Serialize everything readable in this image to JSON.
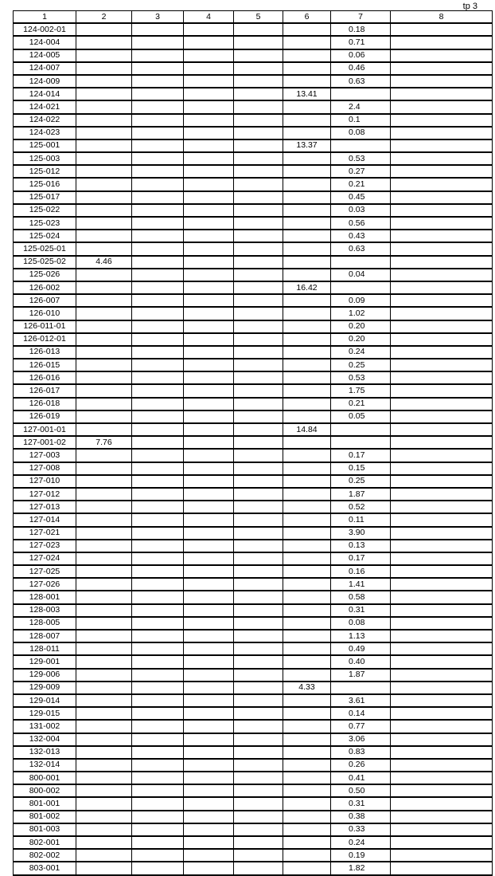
{
  "page_label": "tp 3",
  "columns": [
    "1",
    "2",
    "3",
    "4",
    "5",
    "6",
    "7",
    "8"
  ],
  "rows": [
    {
      "id": "124-002-01",
      "c2": "",
      "c6": "",
      "c7": "0.18"
    },
    {
      "id": "124-004",
      "c2": "",
      "c6": "",
      "c7": "0.71"
    },
    {
      "id": "124-005",
      "c2": "",
      "c6": "",
      "c7": "0.06"
    },
    {
      "id": "124-007",
      "c2": "",
      "c6": "",
      "c7": "0.46"
    },
    {
      "id": "124-009",
      "c2": "",
      "c6": "",
      "c7": "0.63"
    },
    {
      "id": "124-014",
      "c2": "",
      "c6": "13.41",
      "c7": ""
    },
    {
      "id": "124-021",
      "c2": "",
      "c6": "",
      "c7": "2.4"
    },
    {
      "id": "124-022",
      "c2": "",
      "c6": "",
      "c7": "0.1"
    },
    {
      "id": "124-023",
      "c2": "",
      "c6": "",
      "c7": "0.08"
    },
    {
      "id": "125-001",
      "c2": "",
      "c6": "13.37",
      "c7": ""
    },
    {
      "id": "125-003",
      "c2": "",
      "c6": "",
      "c7": "0.53"
    },
    {
      "id": "125-012",
      "c2": "",
      "c6": "",
      "c7": "0.27"
    },
    {
      "id": "125-016",
      "c2": "",
      "c6": "",
      "c7": "0.21"
    },
    {
      "id": "125-017",
      "c2": "",
      "c6": "",
      "c7": "0.45"
    },
    {
      "id": "125-022",
      "c2": "",
      "c6": "",
      "c7": "0.03"
    },
    {
      "id": "125-023",
      "c2": "",
      "c6": "",
      "c7": "0.56"
    },
    {
      "id": "125-024",
      "c2": "",
      "c6": "",
      "c7": "0.43"
    },
    {
      "id": "125-025-01",
      "c2": "",
      "c6": "",
      "c7": "0.63"
    },
    {
      "id": "125-025-02",
      "c2": "4.46",
      "c6": "",
      "c7": ""
    },
    {
      "id": "125-026",
      "c2": "",
      "c6": "",
      "c7": "0.04"
    },
    {
      "id": "126-002",
      "c2": "",
      "c6": "16.42",
      "c7": ""
    },
    {
      "id": "126-007",
      "c2": "",
      "c6": "",
      "c7": "0.09"
    },
    {
      "id": "126-010",
      "c2": "",
      "c6": "",
      "c7": "1.02"
    },
    {
      "id": "126-011-01",
      "c2": "",
      "c6": "",
      "c7": "0.20"
    },
    {
      "id": "126-012-01",
      "c2": "",
      "c6": "",
      "c7": "0.20"
    },
    {
      "id": "126-013",
      "c2": "",
      "c6": "",
      "c7": "0.24"
    },
    {
      "id": "126-015",
      "c2": "",
      "c6": "",
      "c7": "0.25"
    },
    {
      "id": "126-016",
      "c2": "",
      "c6": "",
      "c7": "0.53"
    },
    {
      "id": "126-017",
      "c2": "",
      "c6": "",
      "c7": "1.75"
    },
    {
      "id": "126-018",
      "c2": "",
      "c6": "",
      "c7": "0.21"
    },
    {
      "id": "126-019",
      "c2": "",
      "c6": "",
      "c7": "0.05"
    },
    {
      "id": "127-001-01",
      "c2": "",
      "c6": "14.84",
      "c7": ""
    },
    {
      "id": "127-001-02",
      "c2": "7.76",
      "c6": "",
      "c7": ""
    },
    {
      "id": "127-003",
      "c2": "",
      "c6": "",
      "c7": "0.17"
    },
    {
      "id": "127-008",
      "c2": "",
      "c6": "",
      "c7": "0.15"
    },
    {
      "id": "127-010",
      "c2": "",
      "c6": "",
      "c7": "0.25"
    },
    {
      "id": "127-012",
      "c2": "",
      "c6": "",
      "c7": "1.87"
    },
    {
      "id": "127-013",
      "c2": "",
      "c6": "",
      "c7": "0.52"
    },
    {
      "id": "127-014",
      "c2": "",
      "c6": "",
      "c7": "0.11"
    },
    {
      "id": "127-021",
      "c2": "",
      "c6": "",
      "c7": "3.90"
    },
    {
      "id": "127-023",
      "c2": "",
      "c6": "",
      "c7": "0.13"
    },
    {
      "id": "127-024",
      "c2": "",
      "c6": "",
      "c7": "0.17"
    },
    {
      "id": "127-025",
      "c2": "",
      "c6": "",
      "c7": "0.16"
    },
    {
      "id": "127-026",
      "c2": "",
      "c6": "",
      "c7": "1.41"
    },
    {
      "id": "128-001",
      "c2": "",
      "c6": "",
      "c7": "0.58"
    },
    {
      "id": "128-003",
      "c2": "",
      "c6": "",
      "c7": "0.31"
    },
    {
      "id": "128-005",
      "c2": "",
      "c6": "",
      "c7": "0.08"
    },
    {
      "id": "128-007",
      "c2": "",
      "c6": "",
      "c7": "1.13"
    },
    {
      "id": "128-011",
      "c2": "",
      "c6": "",
      "c7": "0.49"
    },
    {
      "id": "129-001",
      "c2": "",
      "c6": "",
      "c7": "0.40"
    },
    {
      "id": "129-006",
      "c2": "",
      "c6": "",
      "c7": "1.87"
    },
    {
      "id": "129-009",
      "c2": "",
      "c6": "4.33",
      "c7": ""
    },
    {
      "id": "129-014",
      "c2": "",
      "c6": "",
      "c7": "3.61"
    },
    {
      "id": "129-015",
      "c2": "",
      "c6": "",
      "c7": "0.14"
    },
    {
      "id": "131-002",
      "c2": "",
      "c6": "",
      "c7": "0.77"
    },
    {
      "id": "132-004",
      "c2": "",
      "c6": "",
      "c7": "3.06"
    },
    {
      "id": "132-013",
      "c2": "",
      "c6": "",
      "c7": "0.83"
    },
    {
      "id": "132-014",
      "c2": "",
      "c6": "",
      "c7": "0.26"
    },
    {
      "id": "800-001",
      "c2": "",
      "c6": "",
      "c7": "0.41"
    },
    {
      "id": "800-002",
      "c2": "",
      "c6": "",
      "c7": "0.50"
    },
    {
      "id": "801-001",
      "c2": "",
      "c6": "",
      "c7": "0.31"
    },
    {
      "id": "801-002",
      "c2": "",
      "c6": "",
      "c7": "0.38"
    },
    {
      "id": "801-003",
      "c2": "",
      "c6": "",
      "c7": "0.33"
    },
    {
      "id": "802-001",
      "c2": "",
      "c6": "",
      "c7": "0.24"
    },
    {
      "id": "802-002",
      "c2": "",
      "c6": "",
      "c7": "0.19"
    },
    {
      "id": "803-001",
      "c2": "",
      "c6": "",
      "c7": "1.82"
    }
  ]
}
